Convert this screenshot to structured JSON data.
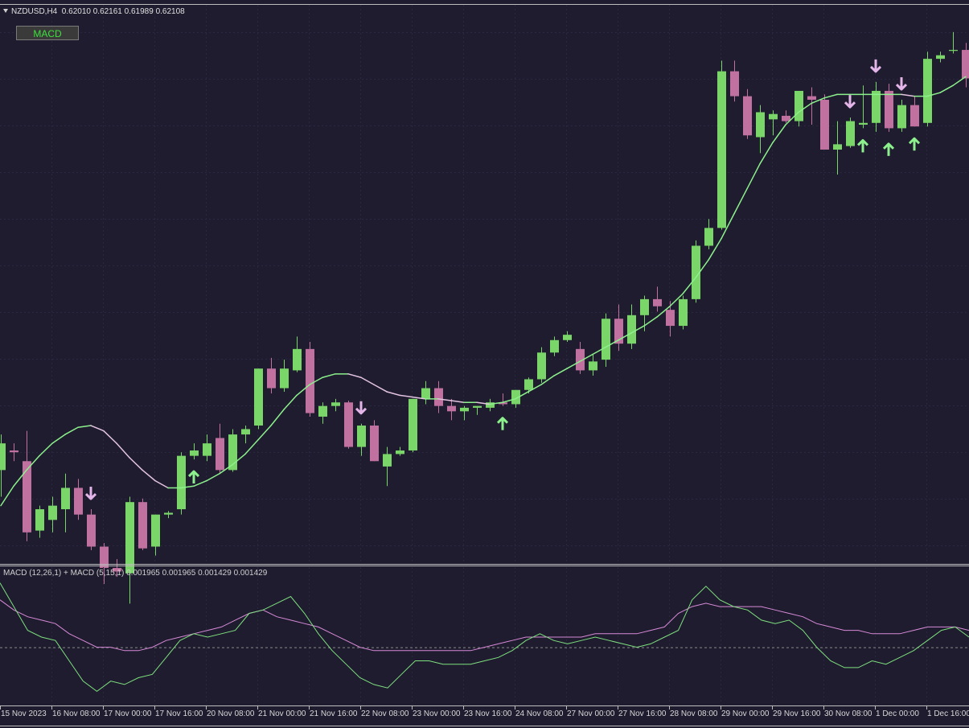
{
  "header": {
    "symbol": "NZDUSD,H4",
    "ohlc": "0.62010 0.62161 0.61989 0.62108"
  },
  "macd_button": {
    "label": "MACD"
  },
  "indicator_header": "MACD (12,26,1) + MACD (5,15,1) 0.001965 0.001965 0.001429 0.001429",
  "time_axis": [
    "15 Nov 2023",
    "16 Nov 08:00",
    "17 Nov 00:00",
    "17 Nov 16:00",
    "20 Nov 08:00",
    "21 Nov 00:00",
    "21 Nov 16:00",
    "22 Nov 08:00",
    "23 Nov 00:00",
    "23 Nov 16:00",
    "24 Nov 08:00",
    "27 Nov 00:00",
    "27 Nov 16:00",
    "28 Nov 08:00",
    "29 Nov 00:00",
    "29 Nov 16:00",
    "30 Nov 08:00",
    "1 Dec 00:00",
    "1 Dec 16:00"
  ],
  "colors": {
    "bull": "#7bd66a",
    "bear": "#c071a0",
    "background": "#1e1c2e",
    "ma_up": "#8cf08c",
    "ma_down": "#e3c3e0",
    "macd_fast": "#7fe07f",
    "macd_slow": "#d88ad8"
  },
  "chart_data": {
    "type": "candlestick",
    "symbol": "NZDUSD",
    "timeframe": "H4",
    "ylim": [
      0.592,
      0.6225
    ],
    "candles": [
      {
        "o": 0.597,
        "h": 0.599,
        "l": 0.5955,
        "c": 0.5985
      },
      {
        "o": 0.5981,
        "h": 0.5985,
        "l": 0.5975,
        "c": 0.598
      },
      {
        "o": 0.5975,
        "h": 0.5992,
        "l": 0.593,
        "c": 0.5935
      },
      {
        "o": 0.5936,
        "h": 0.595,
        "l": 0.5932,
        "c": 0.5948
      },
      {
        "o": 0.5942,
        "h": 0.5955,
        "l": 0.5935,
        "c": 0.595
      },
      {
        "o": 0.5948,
        "h": 0.5968,
        "l": 0.5935,
        "c": 0.596
      },
      {
        "o": 0.596,
        "h": 0.5965,
        "l": 0.5942,
        "c": 0.5945
      },
      {
        "o": 0.5945,
        "h": 0.5948,
        "l": 0.5925,
        "c": 0.5927
      },
      {
        "o": 0.5927,
        "h": 0.5929,
        "l": 0.5906,
        "c": 0.5915
      },
      {
        "o": 0.5915,
        "h": 0.592,
        "l": 0.591,
        "c": 0.5913
      },
      {
        "o": 0.5912,
        "h": 0.5955,
        "l": 0.5895,
        "c": 0.5952
      },
      {
        "o": 0.5952,
        "h": 0.5954,
        "l": 0.5925,
        "c": 0.5926
      },
      {
        "o": 0.5927,
        "h": 0.5945,
        "l": 0.5922,
        "c": 0.5945
      },
      {
        "o": 0.5945,
        "h": 0.5947,
        "l": 0.5943,
        "c": 0.5946
      },
      {
        "o": 0.5948,
        "h": 0.598,
        "l": 0.5945,
        "c": 0.5978
      },
      {
        "o": 0.5978,
        "h": 0.5985,
        "l": 0.5976,
        "c": 0.5981
      },
      {
        "o": 0.5978,
        "h": 0.599,
        "l": 0.5975,
        "c": 0.5985
      },
      {
        "o": 0.5988,
        "h": 0.5996,
        "l": 0.5968,
        "c": 0.597
      },
      {
        "o": 0.597,
        "h": 0.5993,
        "l": 0.5969,
        "c": 0.599
      },
      {
        "o": 0.599,
        "h": 0.5995,
        "l": 0.5985,
        "c": 0.5993
      },
      {
        "o": 0.5995,
        "h": 0.6027,
        "l": 0.5993,
        "c": 0.6027
      },
      {
        "o": 0.6027,
        "h": 0.6033,
        "l": 0.6013,
        "c": 0.6016
      },
      {
        "o": 0.6016,
        "h": 0.6032,
        "l": 0.6014,
        "c": 0.6027
      },
      {
        "o": 0.6026,
        "h": 0.6045,
        "l": 0.6025,
        "c": 0.6038
      },
      {
        "o": 0.6038,
        "h": 0.6042,
        "l": 0.6,
        "c": 0.6002
      },
      {
        "o": 0.6,
        "h": 0.6008,
        "l": 0.5996,
        "c": 0.6006
      },
      {
        "o": 0.6006,
        "h": 0.601,
        "l": 0.6003,
        "c": 0.6008
      },
      {
        "o": 0.6008,
        "h": 0.6009,
        "l": 0.5982,
        "c": 0.5983
      },
      {
        "o": 0.5983,
        "h": 0.5996,
        "l": 0.5978,
        "c": 0.5995
      },
      {
        "o": 0.5995,
        "h": 0.5998,
        "l": 0.5975,
        "c": 0.5975
      },
      {
        "o": 0.5972,
        "h": 0.5983,
        "l": 0.5961,
        "c": 0.5979
      },
      {
        "o": 0.5979,
        "h": 0.5983,
        "l": 0.5978,
        "c": 0.5981
      },
      {
        "o": 0.5981,
        "h": 0.601,
        "l": 0.598,
        "c": 0.601
      },
      {
        "o": 0.601,
        "h": 0.602,
        "l": 0.6007,
        "c": 0.6016
      },
      {
        "o": 0.6016,
        "h": 0.602,
        "l": 0.6002,
        "c": 0.6006
      },
      {
        "o": 0.6006,
        "h": 0.601,
        "l": 0.5998,
        "c": 0.6003
      },
      {
        "o": 0.6003,
        "h": 0.6006,
        "l": 0.5998,
        "c": 0.6005
      },
      {
        "o": 0.6005,
        "h": 0.6006,
        "l": 0.6001,
        "c": 0.6006
      },
      {
        "o": 0.6005,
        "h": 0.601,
        "l": 0.6003,
        "c": 0.6008
      },
      {
        "o": 0.6008,
        "h": 0.6013,
        "l": 0.6006,
        "c": 0.6007
      },
      {
        "o": 0.6007,
        "h": 0.6015,
        "l": 0.6005,
        "c": 0.6015
      },
      {
        "o": 0.6015,
        "h": 0.6022,
        "l": 0.6013,
        "c": 0.6021
      },
      {
        "o": 0.6021,
        "h": 0.6039,
        "l": 0.6019,
        "c": 0.6036
      },
      {
        "o": 0.6036,
        "h": 0.6045,
        "l": 0.6034,
        "c": 0.6043
      },
      {
        "o": 0.6043,
        "h": 0.6048,
        "l": 0.6042,
        "c": 0.6046
      },
      {
        "o": 0.6038,
        "h": 0.6042,
        "l": 0.6024,
        "c": 0.6026
      },
      {
        "o": 0.6026,
        "h": 0.6035,
        "l": 0.6023,
        "c": 0.6031
      },
      {
        "o": 0.6032,
        "h": 0.6058,
        "l": 0.6028,
        "c": 0.6055
      },
      {
        "o": 0.6055,
        "h": 0.6063,
        "l": 0.6037,
        "c": 0.6041
      },
      {
        "o": 0.6041,
        "h": 0.6063,
        "l": 0.6038,
        "c": 0.6057
      },
      {
        "o": 0.6057,
        "h": 0.6068,
        "l": 0.6048,
        "c": 0.6066
      },
      {
        "o": 0.6066,
        "h": 0.6073,
        "l": 0.6059,
        "c": 0.6062
      },
      {
        "o": 0.606,
        "h": 0.6065,
        "l": 0.6045,
        "c": 0.6051
      },
      {
        "o": 0.6051,
        "h": 0.6068,
        "l": 0.6049,
        "c": 0.6066
      },
      {
        "o": 0.6066,
        "h": 0.6099,
        "l": 0.6064,
        "c": 0.6096
      },
      {
        "o": 0.6096,
        "h": 0.6111,
        "l": 0.6094,
        "c": 0.6106
      },
      {
        "o": 0.6106,
        "h": 0.62,
        "l": 0.6105,
        "c": 0.6194
      },
      {
        "o": 0.6194,
        "h": 0.62,
        "l": 0.6177,
        "c": 0.618
      },
      {
        "o": 0.618,
        "h": 0.6184,
        "l": 0.6156,
        "c": 0.6158
      },
      {
        "o": 0.6157,
        "h": 0.6175,
        "l": 0.6148,
        "c": 0.6171
      },
      {
        "o": 0.6167,
        "h": 0.6172,
        "l": 0.6158,
        "c": 0.617
      },
      {
        "o": 0.6169,
        "h": 0.6172,
        "l": 0.6165,
        "c": 0.6166
      },
      {
        "o": 0.6166,
        "h": 0.6183,
        "l": 0.6163,
        "c": 0.6183
      },
      {
        "o": 0.618,
        "h": 0.6185,
        "l": 0.6164,
        "c": 0.6178
      },
      {
        "o": 0.6178,
        "h": 0.6181,
        "l": 0.615,
        "c": 0.615
      },
      {
        "o": 0.615,
        "h": 0.6166,
        "l": 0.6136,
        "c": 0.6153
      },
      {
        "o": 0.6152,
        "h": 0.6168,
        "l": 0.6151,
        "c": 0.6166
      },
      {
        "o": 0.6164,
        "h": 0.6186,
        "l": 0.6162,
        "c": 0.6165
      },
      {
        "o": 0.6165,
        "h": 0.6188,
        "l": 0.616,
        "c": 0.6183
      },
      {
        "o": 0.6183,
        "h": 0.6187,
        "l": 0.616,
        "c": 0.6162
      },
      {
        "o": 0.6162,
        "h": 0.6178,
        "l": 0.616,
        "c": 0.6175
      },
      {
        "o": 0.6175,
        "h": 0.618,
        "l": 0.6163,
        "c": 0.6163
      },
      {
        "o": 0.6165,
        "h": 0.6205,
        "l": 0.6163,
        "c": 0.6201
      },
      {
        "o": 0.6201,
        "h": 0.6205,
        "l": 0.6199,
        "c": 0.6203
      },
      {
        "o": 0.6206,
        "h": 0.6216,
        "l": 0.6204,
        "c": 0.6206
      },
      {
        "o": 0.6206,
        "h": 0.621,
        "l": 0.6185,
        "c": 0.619
      }
    ],
    "ma": [
      0.595,
      0.5961,
      0.597,
      0.5978,
      0.5985,
      0.599,
      0.5994,
      0.5995,
      0.5992,
      0.5985,
      0.5977,
      0.597,
      0.5964,
      0.596,
      0.596,
      0.5961,
      0.5964,
      0.5968,
      0.5973,
      0.5979,
      0.5987,
      0.5995,
      0.6004,
      0.6012,
      0.6018,
      0.6022,
      0.6024,
      0.6024,
      0.6022,
      0.6018,
      0.6014,
      0.6012,
      0.6011,
      0.601,
      0.601,
      0.6009,
      0.6008,
      0.6008,
      0.6007,
      0.6008,
      0.601,
      0.6014,
      0.6018,
      0.6023,
      0.6027,
      0.6031,
      0.6035,
      0.6039,
      0.6043,
      0.6047,
      0.6051,
      0.6056,
      0.6062,
      0.6069,
      0.6078,
      0.6088,
      0.61,
      0.6114,
      0.6128,
      0.6142,
      0.6154,
      0.6164,
      0.6171,
      0.6176,
      0.6179,
      0.6181,
      0.6181,
      0.6181,
      0.6181,
      0.6181,
      0.6181,
      0.618,
      0.618,
      0.6182,
      0.6186,
      0.6191
    ],
    "down_arrows": [
      7,
      28,
      66,
      68,
      70
    ],
    "up_arrows": [
      15,
      39,
      67,
      69,
      71
    ],
    "macd_fast": [
      0.0019,
      0.0012,
      0.0005,
      0.0003,
      0.0002,
      -0.0004,
      -0.001,
      -0.0013,
      -0.001,
      -0.0011,
      -0.0009,
      -0.0008,
      -0.0003,
      0.0002,
      0.0004,
      0.0003,
      0.0004,
      0.0005,
      0.001,
      0.0011,
      0.0013,
      0.0015,
      0.001,
      0.0004,
      -0.0001,
      -0.0005,
      -0.0009,
      -0.0011,
      -0.0012,
      -0.0008,
      -0.0004,
      -0.0004,
      -0.0005,
      -0.0005,
      -0.0005,
      -0.0004,
      -0.0003,
      -0.0001,
      0.0002,
      0.0004,
      0.0002,
      0.0001,
      0.0002,
      0.0003,
      0.0002,
      0.0001,
      0.0,
      0.0001,
      0.0003,
      0.0005,
      0.0014,
      0.0018,
      0.0014,
      0.0012,
      0.0011,
      0.0008,
      0.0007,
      0.0008,
      0.0005,
      0.0,
      -0.0004,
      -0.0006,
      -0.0006,
      -0.0004,
      -0.0005,
      -0.0003,
      -0.0001,
      0.0002,
      0.0005,
      0.0006,
      0.0003
    ],
    "macd_slow": [
      0.0014,
      0.0011,
      0.0009,
      0.0008,
      0.0007,
      0.0004,
      0.0002,
      0.0,
      0.0,
      -0.0001,
      -0.0001,
      0.0,
      0.0002,
      0.0003,
      0.0004,
      0.0005,
      0.0006,
      0.0008,
      0.001,
      0.0011,
      0.0009,
      0.0008,
      0.0007,
      0.0006,
      0.0004,
      0.0002,
      0.0,
      -0.0001,
      -0.0001,
      -0.0001,
      -0.0001,
      -0.0001,
      -0.0001,
      -0.0001,
      -0.0001,
      0.0,
      0.0001,
      0.0002,
      0.0003,
      0.0003,
      0.0003,
      0.0003,
      0.0003,
      0.0004,
      0.0004,
      0.0004,
      0.0004,
      0.0005,
      0.0006,
      0.001,
      0.0012,
      0.0013,
      0.0012,
      0.0012,
      0.0012,
      0.0012,
      0.0011,
      0.001,
      0.0009,
      0.0007,
      0.0006,
      0.0005,
      0.0005,
      0.0004,
      0.0004,
      0.0004,
      0.0005,
      0.0006,
      0.0006,
      0.0006,
      0.0005
    ],
    "macd_ylim": [
      -0.0016,
      0.0022
    ],
    "macd_zero_line": 0
  }
}
